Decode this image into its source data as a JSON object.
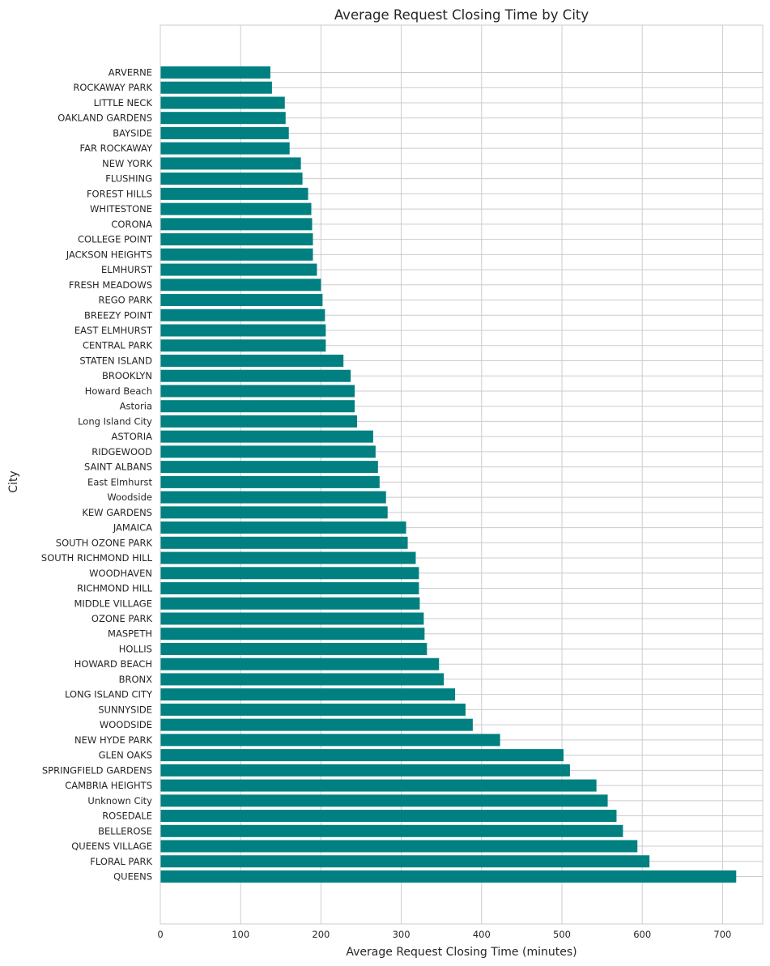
{
  "chart_data": {
    "type": "bar",
    "orientation": "horizontal",
    "title": "Average Request Closing Time by City",
    "xlabel": "Average Request Closing Time (minutes)",
    "ylabel": "City",
    "xlim": [
      0,
      750
    ],
    "xticks": [
      0,
      100,
      200,
      300,
      400,
      500,
      600,
      700
    ],
    "grid": true,
    "bar_color": "#008080",
    "grid_color": "#cccccc",
    "categories": [
      "ARVERNE",
      "ROCKAWAY PARK",
      "LITTLE NECK",
      "OAKLAND GARDENS",
      "BAYSIDE",
      "FAR ROCKAWAY",
      "NEW YORK",
      "FLUSHING",
      "FOREST HILLS",
      "WHITESTONE",
      "CORONA",
      "COLLEGE POINT",
      "JACKSON HEIGHTS",
      "ELMHURST",
      "FRESH MEADOWS",
      "REGO PARK",
      "BREEZY POINT",
      "EAST ELMHURST",
      "CENTRAL PARK",
      "STATEN ISLAND",
      "BROOKLYN",
      "Howard Beach",
      "Astoria",
      "Long Island City",
      "ASTORIA",
      "RIDGEWOOD",
      "SAINT ALBANS",
      "East Elmhurst",
      "Woodside",
      "KEW GARDENS",
      "JAMAICA",
      "SOUTH OZONE PARK",
      "SOUTH RICHMOND HILL",
      "WOODHAVEN",
      "RICHMOND HILL",
      "MIDDLE VILLAGE",
      "OZONE PARK",
      "MASPETH",
      "HOLLIS",
      "HOWARD BEACH",
      "BRONX",
      "LONG ISLAND CITY",
      "SUNNYSIDE",
      "WOODSIDE",
      "NEW HYDE PARK",
      "GLEN OAKS",
      "SPRINGFIELD GARDENS",
      "CAMBRIA HEIGHTS",
      "Unknown City",
      "ROSEDALE",
      "BELLEROSE",
      "QUEENS VILLAGE",
      "FLORAL PARK",
      "QUEENS"
    ],
    "values": [
      137,
      139,
      155,
      156,
      160,
      161,
      175,
      177,
      184,
      188,
      189,
      190,
      190,
      195,
      200,
      202,
      205,
      206,
      206,
      228,
      237,
      242,
      242,
      245,
      265,
      268,
      271,
      273,
      281,
      283,
      306,
      308,
      318,
      322,
      322,
      323,
      328,
      329,
      332,
      347,
      353,
      367,
      380,
      389,
      423,
      502,
      510,
      543,
      557,
      568,
      576,
      594,
      609,
      717
    ]
  }
}
